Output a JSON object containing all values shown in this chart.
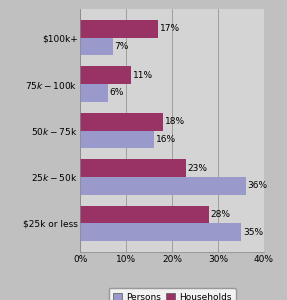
{
  "categories": [
    "$25k or less",
    "$25k-$50k",
    "$50k-$75k",
    "$75k-$100k",
    "$100k+"
  ],
  "persons": [
    35,
    36,
    16,
    6,
    7
  ],
  "households": [
    28,
    23,
    18,
    11,
    17
  ],
  "persons_color": "#9999cc",
  "households_color": "#993366",
  "outer_bg_color": "#c0c0c0",
  "plot_bg_color": "#d4d4d4",
  "bar_height": 0.38,
  "xlim": [
    0,
    40
  ],
  "xticks": [
    0,
    10,
    20,
    30,
    40
  ],
  "xtick_labels": [
    "0%",
    "10%",
    "20%",
    "30%",
    "40%"
  ],
  "legend_labels": [
    "Persons",
    "Households"
  ],
  "label_fontsize": 6.5,
  "tick_fontsize": 6.5,
  "ylabel_fontsize": 6.5
}
